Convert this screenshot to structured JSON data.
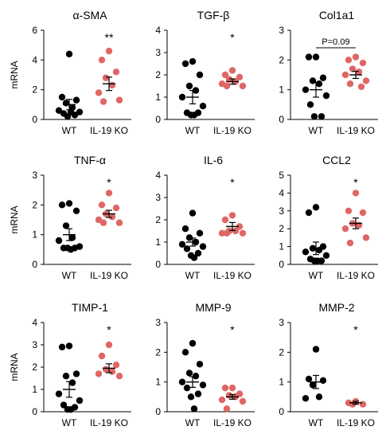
{
  "colors": {
    "wt": "#000000",
    "ko": "#e06666",
    "axis": "#000000"
  },
  "chart_data": [
    {
      "type": "scatter",
      "title": "α-SMA",
      "ylabel": "mRNA",
      "ylim": [
        0,
        6
      ],
      "yticks": [
        "0",
        "2",
        "4",
        "6"
      ],
      "categories": [
        "WT",
        "IL-19 KO"
      ],
      "significance": "**",
      "bracket": "",
      "series": [
        {
          "values": [
            4.4,
            1.5,
            1.3,
            1.1,
            0.8,
            0.6,
            0.5,
            0.4,
            0.3,
            0.2,
            0.5
          ],
          "mean": 1.0,
          "sem": 0.35
        },
        {
          "values": [
            4.6,
            4.0,
            3.2,
            2.8,
            2.3,
            1.8,
            1.3,
            1.2
          ],
          "mean": 2.4,
          "sem": 0.45
        }
      ]
    },
    {
      "type": "scatter",
      "title": "TGF-β",
      "ylabel": "",
      "ylim": [
        0,
        4
      ],
      "yticks": [
        "0",
        "1",
        "2",
        "3",
        "4"
      ],
      "categories": [
        "WT",
        "IL-19 KO"
      ],
      "significance": "*",
      "bracket": "",
      "series": [
        {
          "values": [
            2.6,
            2.5,
            2.0,
            1.5,
            1.3,
            1.0,
            0.6,
            0.3,
            0.3,
            0.2,
            0.2
          ],
          "mean": 1.0,
          "sem": 0.3
        },
        {
          "values": [
            2.2,
            2.0,
            1.9,
            1.8,
            1.7,
            1.6,
            1.5,
            1.5
          ],
          "mean": 1.7,
          "sem": 0.12
        }
      ]
    },
    {
      "type": "scatter",
      "title": "Col1a1",
      "ylabel": "",
      "ylim": [
        0,
        3
      ],
      "yticks": [
        "0",
        "1",
        "2",
        "3"
      ],
      "categories": [
        "WT",
        "IL-19 KO"
      ],
      "significance": "",
      "bracket": "P=0.09",
      "series": [
        {
          "values": [
            2.1,
            2.1,
            1.4,
            1.3,
            1.2,
            1.0,
            0.8,
            0.5,
            0.1,
            0.1
          ],
          "mean": 1.0,
          "sem": 0.25
        },
        {
          "values": [
            2.1,
            2.0,
            1.9,
            1.7,
            1.6,
            1.5,
            1.3,
            1.2,
            1.1
          ],
          "mean": 1.5,
          "sem": 0.12
        }
      ]
    },
    {
      "type": "scatter",
      "title": "TNF-α",
      "ylabel": "mRNA",
      "ylim": [
        0,
        3
      ],
      "yticks": [
        "0",
        "1",
        "2",
        "3"
      ],
      "categories": [
        "WT",
        "IL-19 KO"
      ],
      "significance": "*",
      "bracket": "",
      "series": [
        {
          "values": [
            2.05,
            2.0,
            1.8,
            1.3,
            0.9,
            0.8,
            0.6,
            0.55,
            0.55,
            0.55,
            0.5
          ],
          "mean": 1.0,
          "sem": 0.2
        },
        {
          "values": [
            2.4,
            2.0,
            1.9,
            1.7,
            1.6,
            1.5,
            1.4,
            1.4
          ],
          "mean": 1.7,
          "sem": 0.12
        }
      ]
    },
    {
      "type": "scatter",
      "title": "IL-6",
      "ylabel": "",
      "ylim": [
        0,
        4
      ],
      "yticks": [
        "0",
        "1",
        "2",
        "3",
        "4"
      ],
      "categories": [
        "WT",
        "IL-19 KO"
      ],
      "significance": "*",
      "bracket": "",
      "series": [
        {
          "values": [
            2.3,
            1.6,
            1.4,
            1.2,
            1.0,
            0.9,
            0.8,
            0.7,
            0.5,
            0.4,
            0.3
          ],
          "mean": 1.0,
          "sem": 0.18
        },
        {
          "values": [
            2.2,
            2.0,
            1.7,
            1.5,
            1.5,
            1.4,
            1.4,
            1.4
          ],
          "mean": 1.7,
          "sem": 0.18
        }
      ]
    },
    {
      "type": "scatter",
      "title": "CCL2",
      "ylabel": "",
      "ylim": [
        0,
        5
      ],
      "yticks": [
        "0",
        "1",
        "2",
        "3",
        "4",
        "5"
      ],
      "categories": [
        "WT",
        "IL-19 KO"
      ],
      "significance": "*",
      "bracket": "",
      "series": [
        {
          "values": [
            3.2,
            2.9,
            1.0,
            0.9,
            0.8,
            0.7,
            0.5,
            0.3,
            0.2,
            0.2,
            0.2
          ],
          "mean": 0.9,
          "sem": 0.35
        },
        {
          "values": [
            4.0,
            3.0,
            2.9,
            2.3,
            2.2,
            2.0,
            1.5,
            1.2
          ],
          "mean": 2.3,
          "sem": 0.3
        }
      ]
    },
    {
      "type": "scatter",
      "title": "TIMP-1",
      "ylabel": "mRNA",
      "ylim": [
        0,
        4
      ],
      "yticks": [
        "0",
        "1",
        "2",
        "3",
        "4"
      ],
      "categories": [
        "WT",
        "IL-19 KO"
      ],
      "significance": "*",
      "bracket": "",
      "series": [
        {
          "values": [
            2.95,
            2.9,
            1.7,
            1.6,
            1.3,
            0.8,
            0.5,
            0.3,
            0.2,
            0.1,
            0.1
          ],
          "mean": 1.0,
          "sem": 0.35
        },
        {
          "values": [
            3.0,
            2.5,
            2.1,
            1.9,
            1.8,
            1.7,
            1.6
          ],
          "mean": 1.95,
          "sem": 0.2
        }
      ]
    },
    {
      "type": "scatter",
      "title": "MMP-9",
      "ylabel": "",
      "ylim": [
        0,
        3
      ],
      "yticks": [
        "0",
        "1",
        "2",
        "3"
      ],
      "categories": [
        "WT",
        "IL-19 KO"
      ],
      "significance": "*",
      "bracket": "",
      "series": [
        {
          "values": [
            2.3,
            2.0,
            1.6,
            1.3,
            1.2,
            1.0,
            0.9,
            0.8,
            0.6,
            0.5,
            0.1
          ],
          "mean": 1.0,
          "sem": 0.18
        },
        {
          "values": [
            0.8,
            0.8,
            0.6,
            0.55,
            0.5,
            0.4,
            0.35,
            0.1
          ],
          "mean": 0.5,
          "sem": 0.08
        }
      ]
    },
    {
      "type": "scatter",
      "title": "MMP-2",
      "ylabel": "",
      "ylim": [
        0,
        3
      ],
      "yticks": [
        "0",
        "1",
        "2",
        "3"
      ],
      "categories": [
        "WT",
        "IL-19 KO"
      ],
      "significance": "*",
      "bracket": "",
      "series": [
        {
          "values": [
            2.1,
            1.1,
            1.05,
            0.9,
            0.5,
            0.45
          ],
          "mean": 1.0,
          "sem": 0.22
        },
        {
          "values": [
            0.35,
            0.3,
            0.25,
            0.25
          ],
          "mean": 0.3,
          "sem": 0.05
        }
      ]
    }
  ]
}
